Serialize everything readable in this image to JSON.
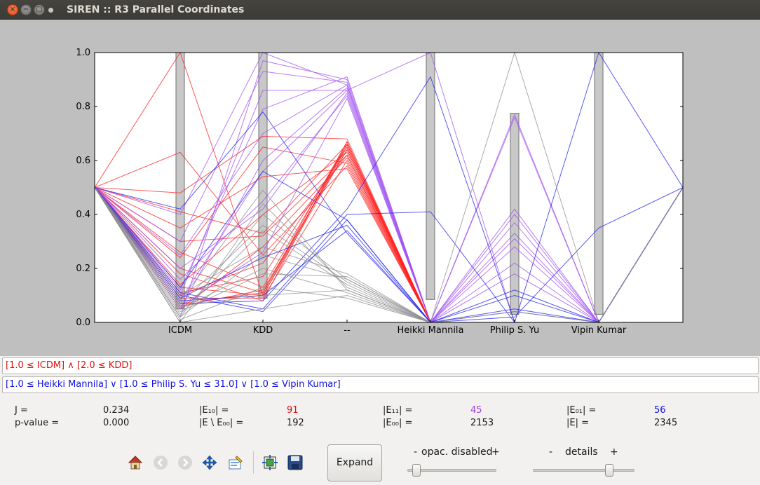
{
  "window": {
    "title": "SIREN :: R3 Parallel Coordinates",
    "close_glyph": "×",
    "min_glyph": "−",
    "max_glyph": "□"
  },
  "chart_data": {
    "type": "parallel-coordinates",
    "axes": [
      "ICDM",
      "KDD",
      "--",
      "Heikki Mannila",
      "Philip S. Yu",
      "Vipin Kumar"
    ],
    "y_ticks": [
      "0.0",
      "0.2",
      "0.4",
      "0.6",
      "0.8",
      "1.0"
    ],
    "ylim": [
      0,
      1
    ],
    "anchor_value": 0.5,
    "selection_bars": [
      {
        "axis": "ICDM",
        "low": 0.05,
        "high": 1.0
      },
      {
        "axis": "KDD",
        "low": 0.09,
        "high": 1.0
      },
      {
        "axis": "Heikki Mannila",
        "low": 0.085,
        "high": 1.0
      },
      {
        "axis": "Philip S. Yu",
        "low": 0.03,
        "high": 0.775
      },
      {
        "axis": "Vipin Kumar",
        "low": 0.03,
        "high": 1.0
      }
    ],
    "series": [
      {
        "color": "#ff2020",
        "lines": [
          [
            0.26,
            0.13,
            0.66,
            0.0,
            null,
            null
          ],
          [
            0.2,
            0.11,
            0.67,
            0.0,
            null,
            null
          ],
          [
            0.11,
            0.17,
            0.65,
            0.0,
            null,
            null
          ],
          [
            0.06,
            0.12,
            0.64,
            0.0,
            null,
            null
          ],
          [
            0.3,
            0.32,
            0.62,
            0.0,
            null,
            null
          ],
          [
            1.0,
            0.1,
            0.66,
            0.0,
            null,
            null
          ],
          [
            0.48,
            0.69,
            0.68,
            0.0,
            null,
            null
          ],
          [
            0.63,
            0.25,
            0.58,
            0.0,
            null,
            null
          ],
          [
            0.14,
            0.4,
            0.63,
            0.0,
            null,
            null
          ],
          [
            0.09,
            0.09,
            0.6,
            0.0,
            null,
            null
          ],
          [
            0.35,
            0.54,
            0.57,
            0.0,
            null,
            null
          ],
          [
            0.1,
            0.22,
            0.62,
            0.0,
            null,
            null
          ],
          [
            0.18,
            0.08,
            0.67,
            0.0,
            null,
            null
          ],
          [
            0.07,
            0.11,
            0.65,
            0.0,
            null,
            null
          ],
          [
            0.24,
            0.65,
            0.59,
            0.0,
            null,
            null
          ],
          [
            0.05,
            0.28,
            0.61,
            0.0,
            null,
            null
          ],
          [
            0.41,
            0.33,
            0.66,
            0.0,
            null,
            null
          ],
          [
            0.13,
            0.1,
            0.64,
            0.0,
            null,
            null
          ]
        ]
      },
      {
        "color": "#a050f0",
        "lines": [
          [
            0.05,
            0.6,
            0.87,
            0.0,
            0.42,
            0.0
          ],
          [
            0.12,
            0.79,
            0.91,
            0.0,
            0.37,
            0.0
          ],
          [
            0.3,
            0.93,
            0.89,
            0.0,
            0.77,
            0.0
          ],
          [
            0.08,
            0.56,
            0.86,
            0.0,
            0.33,
            0.0
          ],
          [
            0.16,
            0.45,
            0.84,
            0.0,
            0.28,
            0.0
          ],
          [
            0.4,
            1.0,
            0.88,
            0.0,
            0.22,
            0.0
          ],
          [
            0.02,
            0.97,
            0.9,
            0.0,
            0.76,
            0.0
          ],
          [
            0.2,
            0.42,
            0.85,
            0.0,
            0.31,
            0.0
          ],
          [
            0.06,
            0.26,
            0.83,
            0.0,
            0.18,
            0.0
          ],
          [
            0.25,
            0.7,
            0.88,
            0.0,
            0.4,
            0.0
          ],
          [
            0.1,
            0.86,
            0.86,
            1.0,
            0.0,
            0.0
          ]
        ]
      },
      {
        "color": "#2222ee",
        "lines": [
          [
            0.1,
            0.04,
            0.38,
            0.0,
            0.12,
            0.0
          ],
          [
            0.08,
            0.1,
            0.34,
            0.0,
            0.05,
            0.0
          ],
          [
            0.42,
            0.78,
            0.33,
            0.0,
            0.02,
            0.35
          ],
          [
            0.11,
            0.05,
            0.4,
            0.41,
            0.0,
            1.0
          ],
          [
            0.09,
            0.24,
            0.36,
            0.0,
            0.1,
            0.0
          ],
          [
            0.07,
            0.08,
            0.42,
            0.91,
            0.0,
            0.0
          ],
          [
            0.13,
            0.56,
            0.38,
            0.0,
            0.04,
            0.0
          ]
        ]
      },
      {
        "color": "#8d8d8d",
        "lines": [
          [
            0.0,
            0.05,
            0.1,
            0.0,
            null,
            null
          ],
          [
            0.03,
            0.34,
            0.14,
            0.0,
            1.0,
            0.0
          ],
          [
            0.08,
            0.49,
            0.12,
            0.0,
            null,
            null
          ],
          [
            0.02,
            0.4,
            0.16,
            0.0,
            null,
            null
          ],
          [
            0.1,
            0.28,
            0.18,
            0.0,
            0.04,
            0.0
          ],
          [
            0.05,
            0.2,
            0.11,
            0.0,
            null,
            null
          ],
          [
            0.01,
            0.13,
            0.09,
            0.0,
            null,
            null
          ],
          [
            0.07,
            0.36,
            0.15,
            0.0,
            null,
            null
          ],
          [
            0.04,
            0.18,
            0.17,
            0.0,
            null,
            null
          ],
          [
            0.0,
            0.44,
            0.13,
            0.0,
            null,
            null
          ],
          [
            0.06,
            0.1,
            0.12,
            0.0,
            null,
            null
          ],
          [
            0.02,
            0.25,
            0.16,
            0.0,
            null,
            null
          ]
        ]
      }
    ]
  },
  "queries": {
    "red": "[1.0 ≤ ICDM] ∧   [2.0 ≤ KDD]",
    "blue": "[1.0 ≤ Heikki Mannila] ∨   [1.0 ≤ Philip S. Yu ≤ 31.0] ∨   [1.0 ≤ Vipin Kumar]"
  },
  "stats": {
    "j_label": "J =",
    "j_value": "0.234",
    "p_label": "p-value =",
    "p_value": "0.000",
    "e10_label": "|E₁₀| =",
    "e10_value": "91",
    "e_minus_e00_label": "|E \\ E₀₀| =",
    "e_minus_e00_value": "192",
    "e11_label": "|E₁₁| =",
    "e11_value": "45",
    "e00_label": "|E₀₀| =",
    "e00_value": "2153",
    "e01_label": "|E₀₁| =",
    "e01_value": "56",
    "e_label": "|E| =",
    "e_value": "2345",
    "colors": {
      "red": "#e01010",
      "purple": "#a040e0",
      "blue": "#1010e0"
    }
  },
  "toolbar": {
    "icons": [
      "home-icon",
      "back-icon",
      "forward-icon",
      "pan-icon",
      "configure-icon",
      "subplots-icon",
      "save-icon"
    ],
    "expand_label": "Expand"
  },
  "sliders": {
    "opacity": {
      "minus": "-",
      "label": "opac. disabled",
      "plus": "+",
      "value": 0.1
    },
    "details": {
      "minus": "-",
      "label": "details",
      "plus": "+",
      "value": 0.75
    }
  }
}
